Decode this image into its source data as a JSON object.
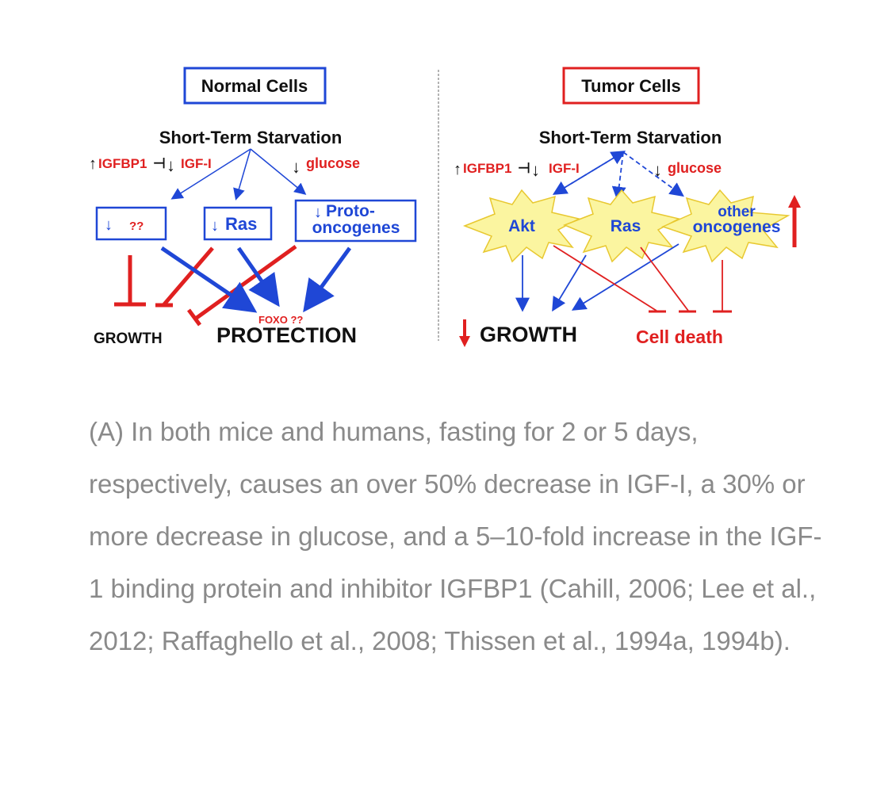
{
  "normal_panel": {
    "title": "Normal Cells",
    "stimulus": "Short-Term Starvation",
    "igfbp1": "IGFBP1",
    "igf": "IGF-I",
    "glucose": "glucose",
    "box_unknown": "??",
    "box_ras": "Ras",
    "box_proto_line1": "Proto-",
    "box_proto_line2": "oncogenes",
    "foxo": "FOXO ??",
    "growth": "GROWTH",
    "protection": "PROTECTION"
  },
  "tumor_panel": {
    "title": "Tumor Cells",
    "stimulus": "Short-Term Starvation",
    "igfbp1": "IGFBP1",
    "igf": "IGF-I",
    "glucose": "glucose",
    "akt": "Akt",
    "ras": "Ras",
    "other_line1": "other",
    "other_line2": "oncogenes",
    "growth": "GROWTH",
    "cell_death": "Cell death"
  },
  "caption": "(A) In both mice and humans, fasting for 2 or 5 days, respectively, causes an over 50% decrease in IGF-I, a 30% or more decrease in glucose, and a 5–10-fold increase in the IGF-1 binding protein and inhibitor IGFBP1 (Cahill, 2006; Lee et al., 2012; Raffaghello et al., 2008; Thissen et al., 1994a, 1994b).",
  "colors": {
    "red": "#e02020",
    "blue": "#1f47d6",
    "starburst": "#fbf5a0",
    "caption": "#8a8a8a"
  }
}
